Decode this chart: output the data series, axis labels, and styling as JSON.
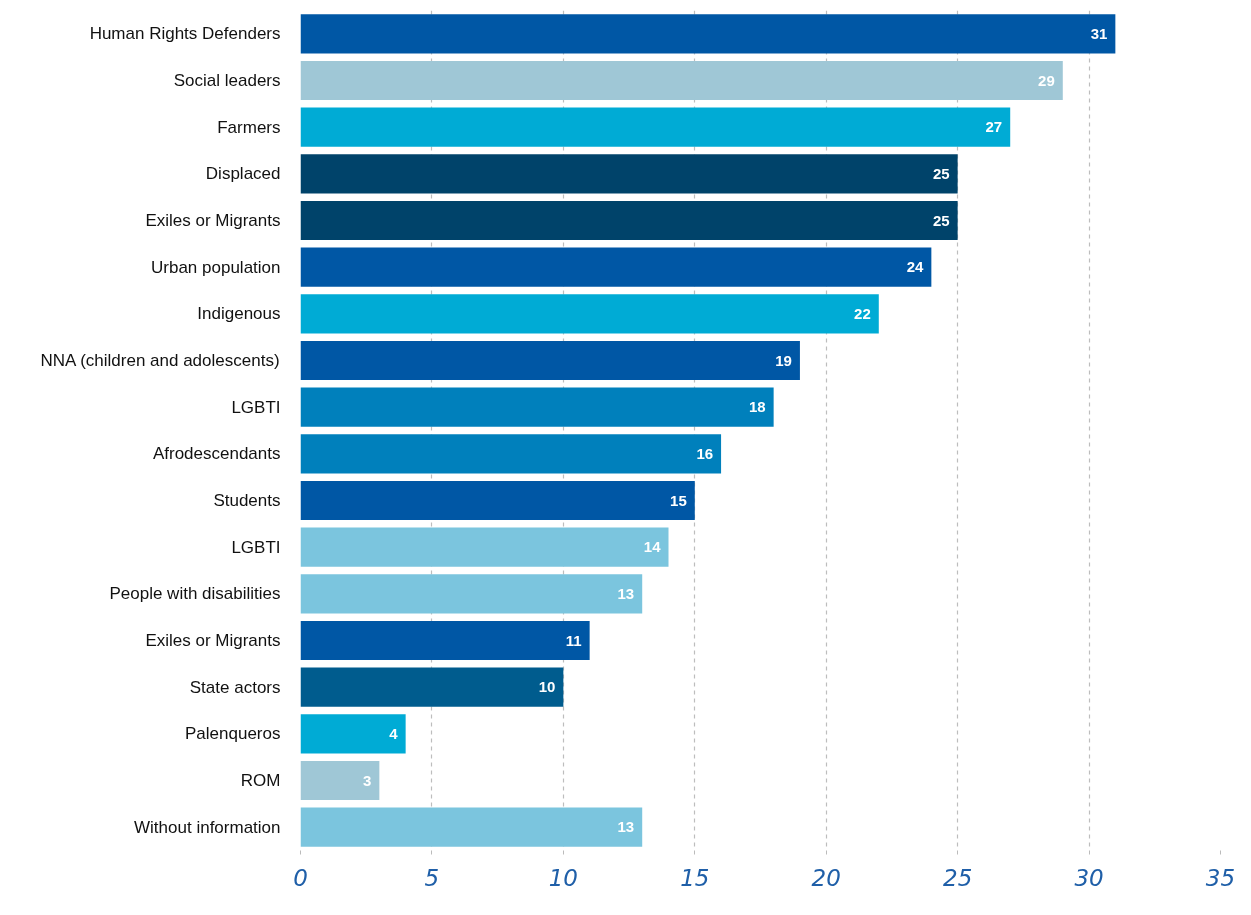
{
  "chart_data": {
    "type": "bar",
    "orientation": "horizontal",
    "categories": [
      "Human Rights Defenders",
      "Social leaders",
      "Farmers",
      "Displaced",
      "Exiles or Migrants",
      "Urban population",
      "Indigenous",
      "NNA (children and adolescents)",
      "LGBTI",
      "Afrodescendants",
      "Students",
      "LGBTI",
      "People with disabilities",
      "Exiles or Migrants",
      "State actors",
      "Palenqueros",
      "ROM",
      "Without information"
    ],
    "values": [
      31,
      29,
      27,
      25,
      25,
      24,
      22,
      19,
      18,
      16,
      15,
      14,
      13,
      11,
      10,
      4,
      3,
      13
    ],
    "colors": [
      "#0057a5",
      "#9fc7d6",
      "#00abd5",
      "#00436a",
      "#00436a",
      "#0057a5",
      "#00abd5",
      "#0057a5",
      "#0080bc",
      "#0080bc",
      "#0057a5",
      "#7bc5de",
      "#7bc5de",
      "#0057a5",
      "#005c8e",
      "#00abd5",
      "#9fc7d6",
      "#7bc5de"
    ],
    "xlim": [
      0,
      35
    ],
    "xticks": [
      0,
      5,
      10,
      15,
      20,
      25,
      30,
      35
    ],
    "grid": "x",
    "data_labels": true
  }
}
